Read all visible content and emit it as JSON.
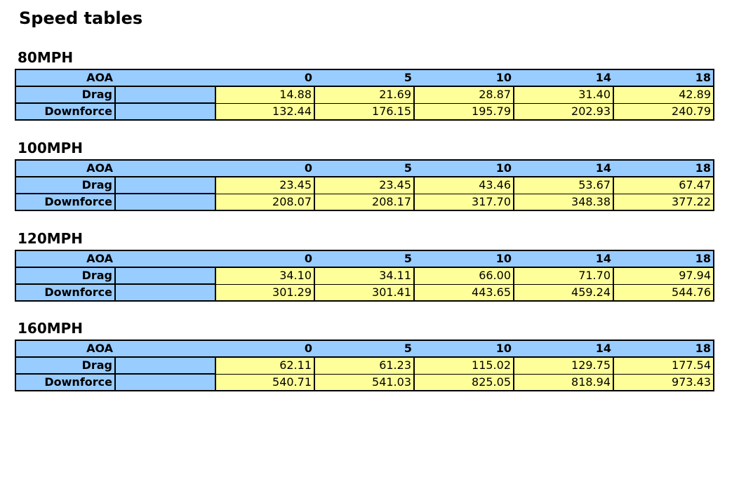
{
  "title": "Speed tables",
  "row_labels": {
    "aoa": "AOA",
    "drag": "Drag",
    "downforce": "Downforce"
  },
  "aoa": [
    "0",
    "5",
    "10",
    "14",
    "18"
  ],
  "colors": {
    "header_bg": "#99ccff",
    "value_bg": "#ffff99"
  },
  "tables": [
    {
      "speed": "80MPH",
      "drag": [
        "14.88",
        "21.69",
        "28.87",
        "31.40",
        "42.89"
      ],
      "downforce": [
        "132.44",
        "176.15",
        "195.79",
        "202.93",
        "240.79"
      ]
    },
    {
      "speed": "100MPH",
      "drag": [
        "23.45",
        "23.45",
        "43.46",
        "53.67",
        "67.47"
      ],
      "downforce": [
        "208.07",
        "208.17",
        "317.70",
        "348.38",
        "377.22"
      ]
    },
    {
      "speed": "120MPH",
      "drag": [
        "34.10",
        "34.11",
        "66.00",
        "71.70",
        "97.94"
      ],
      "downforce": [
        "301.29",
        "301.41",
        "443.65",
        "459.24",
        "544.76"
      ]
    },
    {
      "speed": "160MPH",
      "drag": [
        "62.11",
        "61.23",
        "115.02",
        "129.75",
        "177.54"
      ],
      "downforce": [
        "540.71",
        "541.03",
        "825.05",
        "818.94",
        "973.43"
      ]
    }
  ]
}
